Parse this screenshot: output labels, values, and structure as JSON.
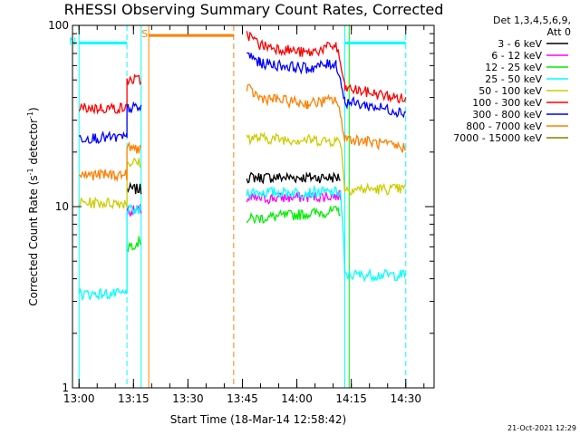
{
  "chart_data": {
    "type": "line",
    "title": "RHESSI Observing Summary Count Rates, Corrected",
    "xlabel": "Start Time (18-Mar-14 12:58:42)",
    "ylabel": "Corrected Count Rate (s",
    "ylabel_sup1": "-1",
    "ylabel_mid": " detector",
    "ylabel_sup2": "-1",
    "ylabel_end": ")",
    "yscale": "log",
    "ylim": [
      1,
      100
    ],
    "xlim_minutes": [
      12.97,
      14.63
    ],
    "x_ticks": [
      {
        "t": 13.0,
        "label": "13:00"
      },
      {
        "t": 13.25,
        "label": "13:15"
      },
      {
        "t": 13.5,
        "label": "13:30"
      },
      {
        "t": 13.75,
        "label": "13:45"
      },
      {
        "t": 14.0,
        "label": "14:00"
      },
      {
        "t": 14.25,
        "label": "14:15"
      },
      {
        "t": 14.5,
        "label": "14:30"
      }
    ],
    "y_ticks": [
      {
        "v": 1,
        "label": "1"
      },
      {
        "v": 10,
        "label": "10"
      },
      {
        "v": 100,
        "label": "100"
      }
    ],
    "legend_header": [
      "Det 1,3,4,5,6,9,",
      "Att 0"
    ],
    "legend_position": "top-right",
    "series": [
      {
        "name": "3 - 6 keV",
        "color": "#000000",
        "segments": [
          {
            "x": [
              13.0,
              13.22,
              13.22,
              13.285
            ],
            "y": [
              null,
              null,
              12.5,
              12.5
            ]
          },
          {
            "x": [
              13.77,
              14.2
            ],
            "y": [
              14.5,
              14.5
            ]
          }
        ]
      },
      {
        "name": "6 - 12 keV",
        "color": "#ff00ff",
        "segments": [
          {
            "x": [
              13.22,
              13.285
            ],
            "y": [
              9.5,
              9.5
            ]
          },
          {
            "x": [
              13.77,
              14.2
            ],
            "y": [
              11.0,
              11.5
            ]
          }
        ]
      },
      {
        "name": "12 - 25 keV",
        "color": "#00ee00",
        "segments": [
          {
            "x": [
              13.22,
              13.285
            ],
            "y": [
              6.0,
              6.5
            ]
          },
          {
            "x": [
              13.77,
              14.2
            ],
            "y": [
              8.5,
              9.5
            ]
          }
        ]
      },
      {
        "name": "25 - 50 keV",
        "color": "#00ffff",
        "segments": [
          {
            "x": [
              13.0,
              13.22,
              13.22,
              13.285
            ],
            "y": [
              3.3,
              3.3,
              9.5,
              9.5
            ]
          },
          {
            "x": [
              13.77,
              14.2,
              14.22,
              14.5
            ],
            "y": [
              12.0,
              12.0,
              4.2,
              4.2
            ]
          }
        ]
      },
      {
        "name": "50 - 100 keV",
        "color": "#cccc00",
        "segments": [
          {
            "x": [
              13.0,
              13.22,
              13.22,
              13.285
            ],
            "y": [
              10.5,
              10.5,
              17.5,
              17.5
            ]
          },
          {
            "x": [
              13.77,
              14.2,
              14.22,
              14.5
            ],
            "y": [
              24.0,
              23.0,
              12.5,
              12.5
            ]
          }
        ]
      },
      {
        "name": "100 - 300 keV",
        "color": "#ff0000",
        "segments": [
          {
            "x": [
              13.0,
              13.22,
              13.22,
              13.285
            ],
            "y": [
              35.0,
              35.0,
              50.0,
              50.0
            ]
          },
          {
            "x": [
              13.77,
              13.83,
              14.05,
              14.18,
              14.22,
              14.5
            ],
            "y": [
              90.0,
              78.0,
              70.0,
              78.0,
              45.0,
              39.0
            ]
          }
        ]
      },
      {
        "name": "300 - 800 keV",
        "color": "#0000ff",
        "segments": [
          {
            "x": [
              13.0,
              13.22,
              13.22,
              13.285
            ],
            "y": [
              24.0,
              24.0,
              35.0,
              35.0
            ]
          },
          {
            "x": [
              13.77,
              13.83,
              14.05,
              14.18,
              14.22,
              14.5
            ],
            "y": [
              70.0,
              62.0,
              58.0,
              62.0,
              38.0,
              33.0
            ]
          }
        ]
      },
      {
        "name": "800 - 7000 keV",
        "color": "#ff8000",
        "segments": [
          {
            "x": [
              13.0,
              13.22,
              13.22,
              13.285
            ],
            "y": [
              15.0,
              15.0,
              21.0,
              21.0
            ]
          },
          {
            "x": [
              13.77,
              13.83,
              14.05,
              14.18,
              14.22,
              14.5
            ],
            "y": [
              45.0,
              40.0,
              37.0,
              39.0,
              24.0,
              21.0
            ]
          }
        ]
      },
      {
        "name": "7000 - 15000 keV",
        "color": "#808000",
        "segments": []
      }
    ],
    "saa_segments": [
      {
        "label": "N",
        "color": "#00ffff",
        "x": [
          13.0,
          13.22
        ],
        "y": 80
      },
      {
        "label": "S",
        "color": "#ff8000",
        "x": [
          13.32,
          13.71
        ],
        "y": 88
      },
      {
        "label": "",
        "color": "#00ffff",
        "x": [
          14.22,
          14.5
        ],
        "y": 80
      }
    ],
    "markers": [
      {
        "t": 13.0,
        "color": "#00ffff",
        "style": "solid"
      },
      {
        "t": 13.22,
        "color": "#00ffff",
        "style": "dashed"
      },
      {
        "t": 13.285,
        "color": "#00ffff",
        "style": "solid"
      },
      {
        "t": 13.32,
        "color": "#ff8000",
        "style": "solid"
      },
      {
        "t": 13.71,
        "color": "#ff8000",
        "style": "dashed"
      },
      {
        "t": 14.22,
        "color": "#00ffff",
        "style": "solid"
      },
      {
        "t": 14.24,
        "color": "#00ee00",
        "style": "solid"
      },
      {
        "t": 14.5,
        "color": "#00ffff",
        "style": "dashed"
      }
    ]
  },
  "timestamp": "21-Oct-2021 12:29"
}
